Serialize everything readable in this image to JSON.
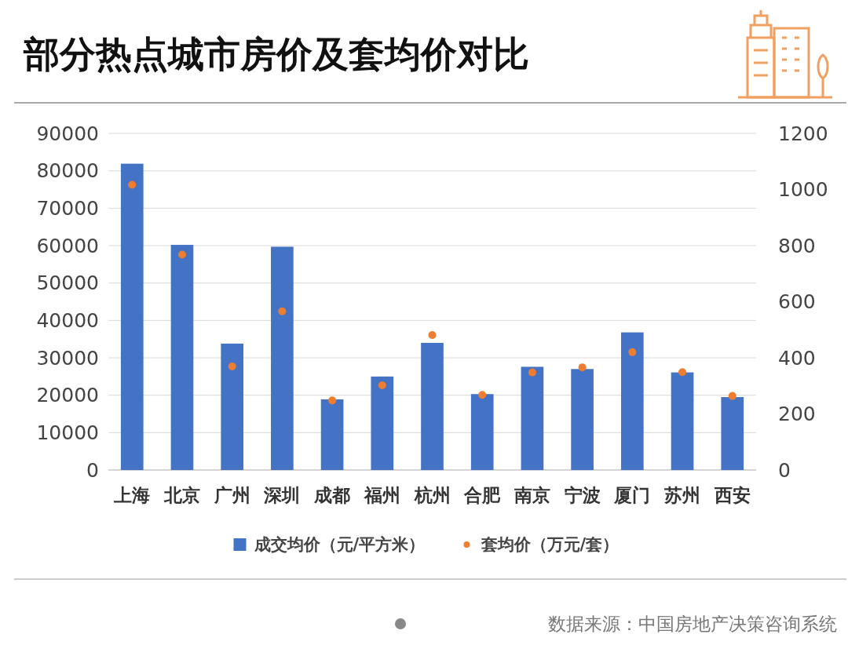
{
  "chart_data": {
    "type": "bar",
    "title": "部分热点城市房价及套均价对比",
    "categories": [
      "上海",
      "北京",
      "广州",
      "深圳",
      "成都",
      "福州",
      "杭州",
      "合肥",
      "南京",
      "宁波",
      "厦门",
      "苏州",
      "西安"
    ],
    "series": [
      {
        "name": "成交均价（元/平方米）",
        "color": "#4472c4",
        "values": [
          81900,
          60200,
          33800,
          59700,
          18900,
          25000,
          34000,
          20300,
          27600,
          27000,
          36800,
          26100,
          19500
        ]
      },
      {
        "name": "套均价（万元/套）",
        "type": "scatter",
        "axis": "y2",
        "marker": "circle",
        "color": "#ed7d31",
        "values": [
          1017,
          768,
          369,
          566,
          248,
          302,
          481,
          268,
          348,
          366,
          420,
          349,
          264
        ]
      }
    ],
    "ylim": [
      0,
      90000
    ],
    "yticks": [
      0,
      10000,
      20000,
      30000,
      40000,
      50000,
      60000,
      70000,
      80000,
      90000
    ],
    "y2lim": [
      0,
      1200
    ],
    "y2ticks": [
      0,
      200,
      400,
      600,
      800,
      1000,
      1200
    ],
    "grid": "y",
    "legend": "bottom",
    "annotations": [
      "数据来源：中国房地产决策咨询系统"
    ]
  }
}
